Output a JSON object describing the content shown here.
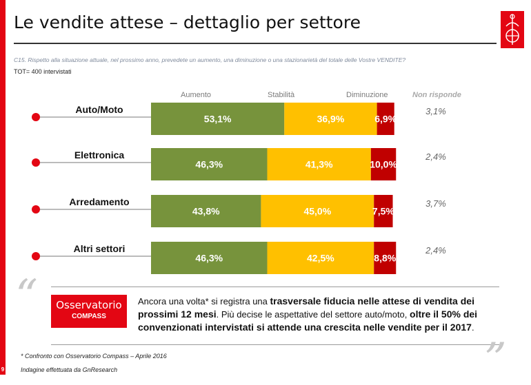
{
  "header": {
    "title": "Le vendite attese – dettaglio per settore",
    "question": "C15. Rispetto alla situazione attuale, nel prossimo anno, prevedete un aumento, una diminuzione o una stazionarietà del totale delle Vostre VENDITE?",
    "tot": "TOT= 400 intervistati"
  },
  "chart_data": {
    "type": "bar",
    "orientation": "horizontal-stacked-100",
    "categories": [
      "Auto/Moto",
      "Elettronica",
      "Arredamento",
      "Altri settori"
    ],
    "series": [
      {
        "name": "Aumento",
        "color": "#77933c",
        "values": [
          53.1,
          46.3,
          43.8,
          46.3
        ],
        "labels": [
          "53,1%",
          "46,3%",
          "43,8%",
          "46,3%"
        ]
      },
      {
        "name": "Stabilità",
        "color": "#ffc000",
        "values": [
          36.9,
          41.3,
          45.0,
          42.5
        ],
        "labels": [
          "36,9%",
          "41,3%",
          "45,0%",
          "42,5%"
        ]
      },
      {
        "name": "Diminuzione",
        "color": "#c00000",
        "values": [
          6.9,
          10.0,
          7.5,
          8.8
        ],
        "labels": [
          "6,9%",
          "10,0%",
          "7,5%",
          "8,8%"
        ]
      }
    ],
    "non_risponde": {
      "name": "Non risponde",
      "labels": [
        "3,1%",
        "2,4%",
        "3,7%",
        "2,4%"
      ]
    }
  },
  "comment": {
    "p1": "Ancora una volta* si registra una ",
    "b1": "trasversale fiducia nelle attese di vendita dei prossimi 12 mesi",
    "p2": ". Più decise le aspettative  del settore auto/moto, ",
    "b2": "oltre il 50% dei convenzionati intervistati si attende una crescita nelle vendite per il 2017",
    "p3": "."
  },
  "logo": {
    "line1": "Osservatorio",
    "line2": "COMPASS"
  },
  "footnote": "* Confronto con Osservatorio Compass – Aprile 2016",
  "source": "Indagine effettuata da GnResearch",
  "page_number": "9",
  "quotes": {
    "open": "“",
    "close": "”"
  }
}
